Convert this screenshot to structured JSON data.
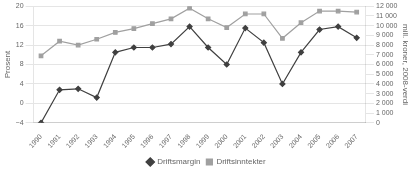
{
  "chart_data": {
    "type": "line",
    "x": [
      1990,
      1991,
      1992,
      1993,
      1994,
      1995,
      1996,
      1997,
      1998,
      1999,
      2000,
      2001,
      2002,
      2003,
      2004,
      2005,
      2006,
      2007
    ],
    "xlim": [
      1989.6,
      2007.5
    ],
    "xticks": [
      1990,
      1991,
      1992,
      1993,
      1994,
      1995,
      1996,
      1997,
      1998,
      1999,
      2000,
      2001,
      2002,
      2003,
      2004,
      2005,
      2006,
      2007
    ],
    "ylabel": "Prosent",
    "y2label": "mill. kroner, 2008-verdi",
    "ylim": [
      -4,
      20
    ],
    "yticks": [
      {
        "value": -4,
        "label": "−4"
      },
      0,
      4,
      8,
      12,
      16,
      20
    ],
    "y2lim": [
      0,
      12000
    ],
    "y2ticks": [
      0,
      {
        "value": 1000,
        "label": "1 000"
      },
      {
        "value": 2000,
        "label": "2 000"
      },
      {
        "value": 3000,
        "label": "3 000"
      },
      {
        "value": 4000,
        "label": "4 000"
      },
      {
        "value": 5000,
        "label": "5 000"
      },
      {
        "value": 6000,
        "label": "6 000"
      },
      {
        "value": 7000,
        "label": "7 000"
      },
      {
        "value": 8000,
        "label": "8 000"
      },
      {
        "value": 9000,
        "label": "9 000"
      },
      {
        "value": 10000,
        "label": "10 000"
      },
      {
        "value": 11000,
        "label": "11 000"
      },
      {
        "value": 12000,
        "label": "12 000"
      }
    ],
    "grid": true,
    "legend": "bottom",
    "series": [
      {
        "name": "Driftsmargin",
        "color": "#404040",
        "marker": "diamond",
        "values": [
          -4.0,
          2.8,
          3.0,
          1.2,
          10.5,
          11.5,
          11.5,
          12.2,
          15.8,
          11.5,
          8.0,
          15.5,
          12.5,
          4.0,
          10.5,
          15.2,
          15.8,
          13.5
        ]
      },
      {
        "name": "Driftsinntekter",
        "color": "#a0a0a0",
        "marker": "square",
        "axis": "y2",
        "values": [
          6900,
          8400,
          8000,
          8600,
          9300,
          9700,
          10200,
          10700,
          11800,
          10700,
          9800,
          11200,
          11200,
          8700,
          10300,
          11500,
          11500,
          11400
        ]
      }
    ]
  }
}
